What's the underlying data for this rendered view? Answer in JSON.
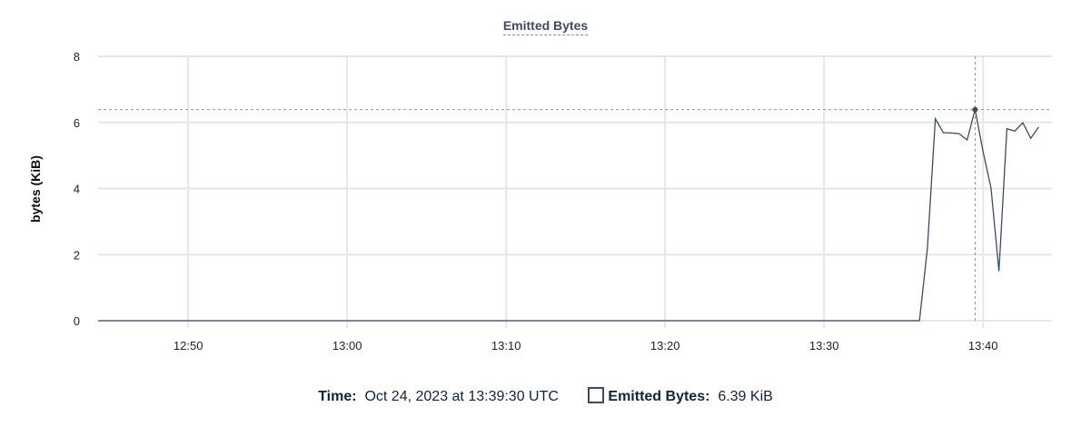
{
  "chart_data": {
    "type": "line",
    "title": "Emitted Bytes",
    "xlabel": "",
    "ylabel": "bytes (KiB)",
    "xlim": [
      "12:44:20",
      "13:44:20"
    ],
    "ylim": [
      0,
      8
    ],
    "x_ticks": [
      "12:50",
      "13:00",
      "13:10",
      "13:20",
      "13:30",
      "13:40"
    ],
    "y_ticks": [
      0,
      2,
      4,
      6,
      8
    ],
    "grid": true,
    "line_color": "#3d4b63",
    "series": [
      {
        "name": "Emitted Bytes",
        "x": [
          "12:44:20",
          "13:36:00",
          "13:36:30",
          "13:37:00",
          "13:37:30",
          "13:38:00",
          "13:38:30",
          "13:39:00",
          "13:39:30",
          "13:40:00",
          "13:40:30",
          "13:41:00",
          "13:41:30",
          "13:42:00",
          "13:42:30",
          "13:43:00",
          "13:43:30"
        ],
        "values": [
          0,
          0,
          2.19,
          6.11,
          5.69,
          5.68,
          5.66,
          5.47,
          6.39,
          5.12,
          4.02,
          1.5,
          5.81,
          5.74,
          5.99,
          5.52,
          5.86
        ]
      }
    ],
    "highlight": {
      "x": "13:39:30",
      "value": 6.39
    }
  },
  "legend": {
    "time_label": "Time:",
    "time_value": "Oct 24, 2023 at 13:39:30 UTC",
    "series_label": "Emitted Bytes:",
    "series_value": "6.39 KiB"
  }
}
